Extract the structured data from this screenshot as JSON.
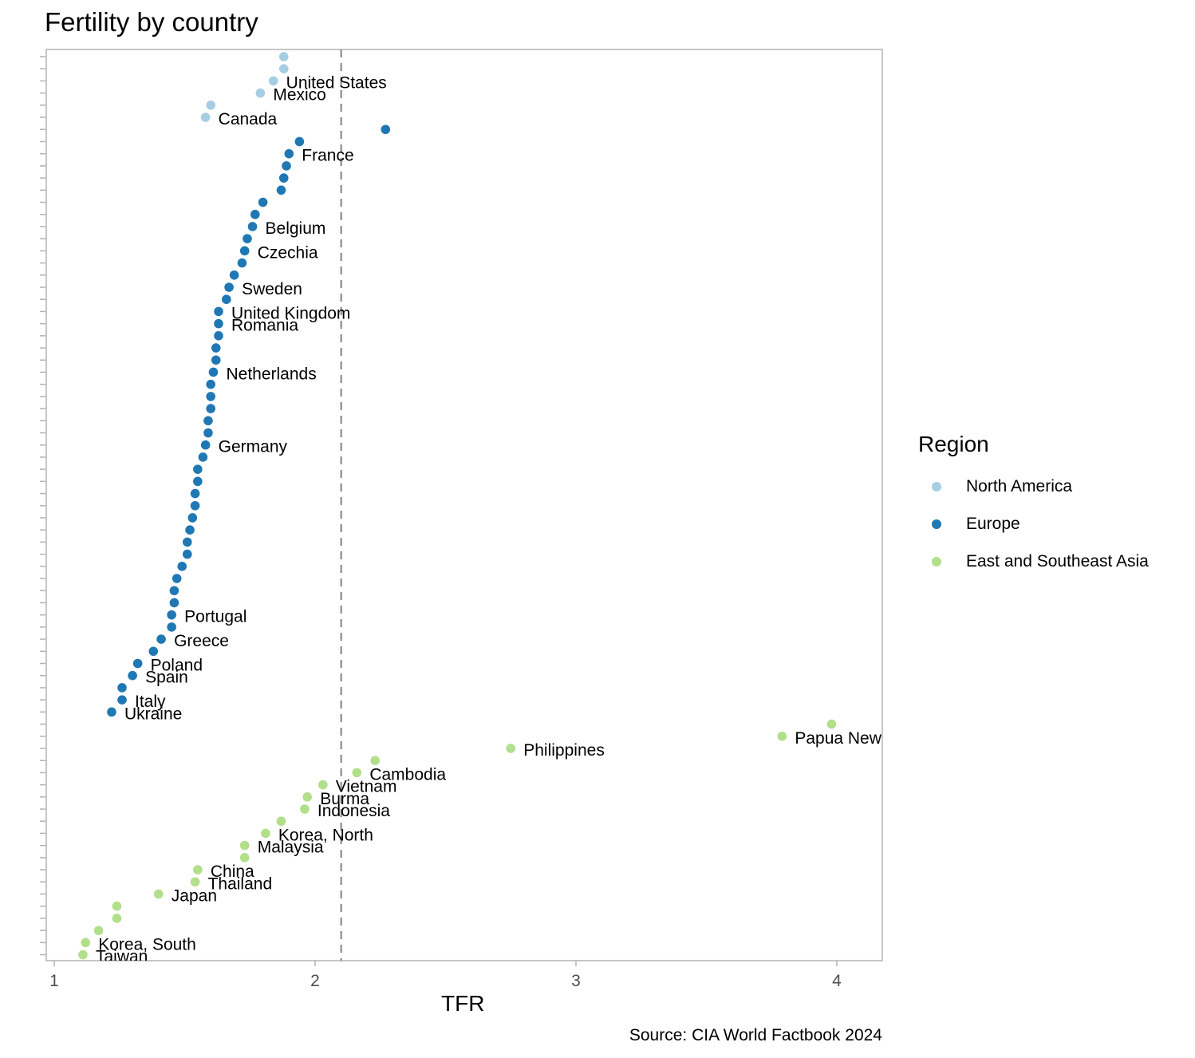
{
  "chart_data": {
    "type": "scatter",
    "title": "Fertility by country",
    "xlabel": "TFR",
    "ylabel": "",
    "caption": "Source: CIA World Factbook 2024",
    "xlim": [
      1,
      4.2
    ],
    "xticks": [
      "1",
      "2",
      "3",
      "4"
    ],
    "reference_line": {
      "x": 2.1,
      "style": "dashed"
    },
    "legend": {
      "title": "Region",
      "position": "right",
      "entries": [
        {
          "name": "North America",
          "color": "#a6cee3"
        },
        {
          "name": "Europe",
          "color": "#1f78b4"
        },
        {
          "name": "East and Southeast Asia",
          "color": "#b2df8a"
        }
      ]
    },
    "points": [
      {
        "x": 1.88,
        "region": "North America",
        "label": ""
      },
      {
        "x": 1.88,
        "region": "North America",
        "label": ""
      },
      {
        "x": 1.84,
        "region": "North America",
        "label": "United States"
      },
      {
        "x": 1.79,
        "region": "North America",
        "label": "Mexico"
      },
      {
        "x": 1.6,
        "region": "North America",
        "label": ""
      },
      {
        "x": 1.58,
        "region": "North America",
        "label": "Canada"
      },
      {
        "x": 2.27,
        "region": "Europe",
        "label": ""
      },
      {
        "x": 1.94,
        "region": "Europe",
        "label": ""
      },
      {
        "x": 1.9,
        "region": "Europe",
        "label": "France"
      },
      {
        "x": 1.89,
        "region": "Europe",
        "label": ""
      },
      {
        "x": 1.88,
        "region": "Europe",
        "label": ""
      },
      {
        "x": 1.87,
        "region": "Europe",
        "label": ""
      },
      {
        "x": 1.8,
        "region": "Europe",
        "label": ""
      },
      {
        "x": 1.77,
        "region": "Europe",
        "label": ""
      },
      {
        "x": 1.76,
        "region": "Europe",
        "label": "Belgium"
      },
      {
        "x": 1.74,
        "region": "Europe",
        "label": ""
      },
      {
        "x": 1.73,
        "region": "Europe",
        "label": "Czechia"
      },
      {
        "x": 1.72,
        "region": "Europe",
        "label": ""
      },
      {
        "x": 1.69,
        "region": "Europe",
        "label": ""
      },
      {
        "x": 1.67,
        "region": "Europe",
        "label": "Sweden"
      },
      {
        "x": 1.66,
        "region": "Europe",
        "label": ""
      },
      {
        "x": 1.63,
        "region": "Europe",
        "label": "United Kingdom"
      },
      {
        "x": 1.63,
        "region": "Europe",
        "label": "Romania"
      },
      {
        "x": 1.63,
        "region": "Europe",
        "label": ""
      },
      {
        "x": 1.62,
        "region": "Europe",
        "label": ""
      },
      {
        "x": 1.62,
        "region": "Europe",
        "label": ""
      },
      {
        "x": 1.61,
        "region": "Europe",
        "label": "Netherlands"
      },
      {
        "x": 1.6,
        "region": "Europe",
        "label": ""
      },
      {
        "x": 1.6,
        "region": "Europe",
        "label": ""
      },
      {
        "x": 1.6,
        "region": "Europe",
        "label": ""
      },
      {
        "x": 1.59,
        "region": "Europe",
        "label": ""
      },
      {
        "x": 1.59,
        "region": "Europe",
        "label": ""
      },
      {
        "x": 1.58,
        "region": "Europe",
        "label": "Germany"
      },
      {
        "x": 1.57,
        "region": "Europe",
        "label": ""
      },
      {
        "x": 1.55,
        "region": "Europe",
        "label": ""
      },
      {
        "x": 1.55,
        "region": "Europe",
        "label": ""
      },
      {
        "x": 1.54,
        "region": "Europe",
        "label": ""
      },
      {
        "x": 1.54,
        "region": "Europe",
        "label": ""
      },
      {
        "x": 1.53,
        "region": "Europe",
        "label": ""
      },
      {
        "x": 1.52,
        "region": "Europe",
        "label": ""
      },
      {
        "x": 1.51,
        "region": "Europe",
        "label": ""
      },
      {
        "x": 1.51,
        "region": "Europe",
        "label": ""
      },
      {
        "x": 1.49,
        "region": "Europe",
        "label": ""
      },
      {
        "x": 1.47,
        "region": "Europe",
        "label": ""
      },
      {
        "x": 1.46,
        "region": "Europe",
        "label": ""
      },
      {
        "x": 1.46,
        "region": "Europe",
        "label": ""
      },
      {
        "x": 1.45,
        "region": "Europe",
        "label": "Portugal"
      },
      {
        "x": 1.45,
        "region": "Europe",
        "label": ""
      },
      {
        "x": 1.41,
        "region": "Europe",
        "label": "Greece"
      },
      {
        "x": 1.38,
        "region": "Europe",
        "label": ""
      },
      {
        "x": 1.32,
        "region": "Europe",
        "label": "Poland"
      },
      {
        "x": 1.3,
        "region": "Europe",
        "label": "Spain"
      },
      {
        "x": 1.26,
        "region": "Europe",
        "label": ""
      },
      {
        "x": 1.26,
        "region": "Europe",
        "label": "Italy"
      },
      {
        "x": 1.22,
        "region": "Europe",
        "label": "Ukraine"
      },
      {
        "x": 3.98,
        "region": "East and Southeast Asia",
        "label": ""
      },
      {
        "x": 3.79,
        "region": "East and Southeast Asia",
        "label": "Papua New Guinea"
      },
      {
        "x": 2.75,
        "region": "East and Southeast Asia",
        "label": "Philippines"
      },
      {
        "x": 2.23,
        "region": "East and Southeast Asia",
        "label": ""
      },
      {
        "x": 2.16,
        "region": "East and Southeast Asia",
        "label": "Cambodia"
      },
      {
        "x": 2.03,
        "region": "East and Southeast Asia",
        "label": "Vietnam"
      },
      {
        "x": 1.97,
        "region": "East and Southeast Asia",
        "label": "Burma"
      },
      {
        "x": 1.96,
        "region": "East and Southeast Asia",
        "label": "Indonesia"
      },
      {
        "x": 1.87,
        "region": "East and Southeast Asia",
        "label": ""
      },
      {
        "x": 1.81,
        "region": "East and Southeast Asia",
        "label": "Korea, North"
      },
      {
        "x": 1.73,
        "region": "East and Southeast Asia",
        "label": "Malaysia"
      },
      {
        "x": 1.73,
        "region": "East and Southeast Asia",
        "label": ""
      },
      {
        "x": 1.55,
        "region": "East and Southeast Asia",
        "label": "China"
      },
      {
        "x": 1.54,
        "region": "East and Southeast Asia",
        "label": "Thailand"
      },
      {
        "x": 1.4,
        "region": "East and Southeast Asia",
        "label": "Japan"
      },
      {
        "x": 1.24,
        "region": "East and Southeast Asia",
        "label": ""
      },
      {
        "x": 1.24,
        "region": "East and Southeast Asia",
        "label": ""
      },
      {
        "x": 1.17,
        "region": "East and Southeast Asia",
        "label": ""
      },
      {
        "x": 1.12,
        "region": "East and Southeast Asia",
        "label": "Korea, South"
      },
      {
        "x": 1.11,
        "region": "East and Southeast Asia",
        "label": "Taiwan"
      }
    ]
  }
}
